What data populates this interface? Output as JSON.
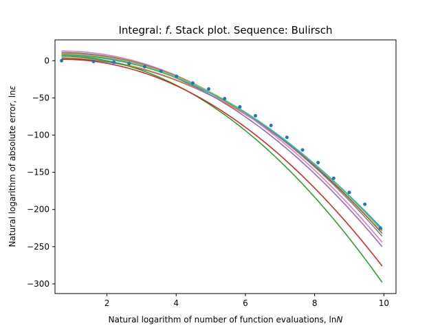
{
  "chart_data": {
    "type": "line",
    "title": "Integral: f. Stack plot. Sequence: Bulirsch",
    "title_parts": {
      "prefix": "Integral: ",
      "italic": "f",
      "suffix": ". Stack plot. Sequence: Bulirsch"
    },
    "xlabel": "Natural logarithm of number of function evaluations, lnN",
    "xlabel_parts": {
      "prefix": "Natural logarithm of number of function evaluations, ln",
      "italic": "N"
    },
    "ylabel": "Natural logarithm of absolute error, lnε",
    "ylabel_parts": {
      "prefix": "Natural logarithm of absolute error, ln",
      "italic": "ε"
    },
    "xlim": [
      0.5,
      10.35
    ],
    "ylim": [
      -313,
      28
    ],
    "xticks": [
      2,
      4,
      6,
      8,
      10
    ],
    "yticks": [
      0,
      -50,
      -100,
      -150,
      -200,
      -250,
      -300
    ],
    "grid": false,
    "legend": "none",
    "scatter": {
      "color": "#1f77b4",
      "x": [
        0.69,
        1.61,
        2.2,
        2.64,
        3.09,
        3.56,
        4.01,
        4.48,
        4.94,
        5.4,
        5.84,
        6.29,
        6.74,
        7.2,
        7.65,
        8.1,
        8.55,
        9.0,
        9.45,
        9.9
      ],
      "y": [
        0,
        -1,
        -2,
        -4,
        -8,
        -14,
        -21,
        -30,
        -38,
        -51,
        -62,
        -74,
        -87,
        -103,
        -120,
        -137,
        -158,
        -177,
        -193,
        -225
      ]
    },
    "series": [
      {
        "color": "#1f77b4",
        "x_range": [
          0.69,
          9.95
        ],
        "y_start": 3,
        "y_end": -226
      },
      {
        "color": "#ff7f0e",
        "x_range": [
          0.69,
          9.95
        ],
        "y_start": 4,
        "y_end": -228
      },
      {
        "color": "#2ca02c",
        "x_range": [
          0.69,
          9.95
        ],
        "y_start": 6,
        "y_end": -298
      },
      {
        "color": "#d62728",
        "x_range": [
          0.69,
          9.95
        ],
        "y_start": 2,
        "y_end": -276
      },
      {
        "color": "#9467bd",
        "x_range": [
          0.69,
          9.95
        ],
        "y_start": 10,
        "y_end": -250
      },
      {
        "color": "#8c564b",
        "x_range": [
          0.69,
          9.95
        ],
        "y_start": 8,
        "y_end": -232
      },
      {
        "color": "#e377c2",
        "x_range": [
          0.69,
          9.95
        ],
        "y_start": 13,
        "y_end": -244
      },
      {
        "color": "#7f7f7f",
        "x_range": [
          0.69,
          9.95
        ],
        "y_start": 11,
        "y_end": -236
      },
      {
        "color": "#bcbd22",
        "x_range": [
          0.69,
          9.95
        ],
        "y_start": 9,
        "y_end": -229
      },
      {
        "color": "#17becf",
        "x_range": [
          0.69,
          9.95
        ],
        "y_start": 7,
        "y_end": -227
      }
    ]
  }
}
